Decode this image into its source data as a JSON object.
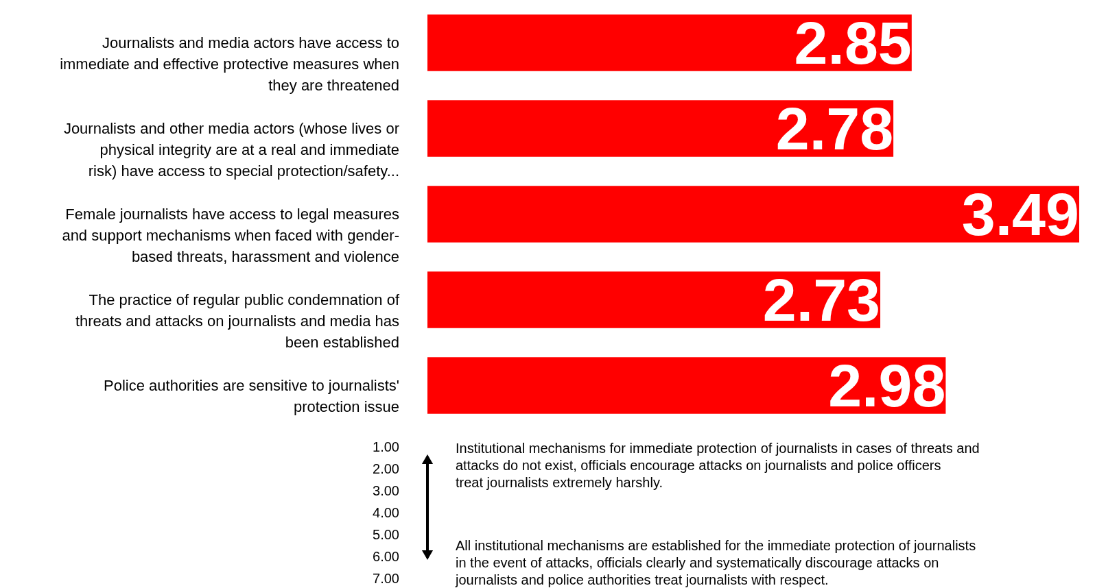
{
  "chart_data": {
    "type": "bar",
    "orientation": "horizontal",
    "categories": [
      "Journalists and media actors have access to immediate and effective protective measures when they are threatened",
      "Journalists and other media actors (whose lives or physical integrity are at a real and immediate risk) have access to special protection/safety...",
      "Female journalists have access to legal measures and support mechanisms when faced with gender-based threats, harassment and violence",
      "The practice of regular public condemnation of threats and attacks on journalists and media has been established",
      "Police authorities are sensitive to journalists' protection issue"
    ],
    "values": [
      2.85,
      2.78,
      3.49,
      2.73,
      2.98
    ],
    "color": "#ff0000",
    "xlim": [
      1,
      3.49
    ],
    "data_labels": true,
    "tick_labels": "y",
    "annotations": [
      "1.00",
      "2.00",
      "3.00",
      "4.00",
      "5.00",
      "6.00",
      "7.00",
      "Institutional mechanisms for immediate protection of journalists in cases of threats and attacks do not exist, officials encourage attacks on journalists and police officers treat journalists extremely harshly.",
      "All institutional mechanisms are established for the immediate protection of journalists in the event of attacks, officials clearly and systematically discourage attacks on journalists and police authorities treat journalists with respect."
    ]
  }
}
